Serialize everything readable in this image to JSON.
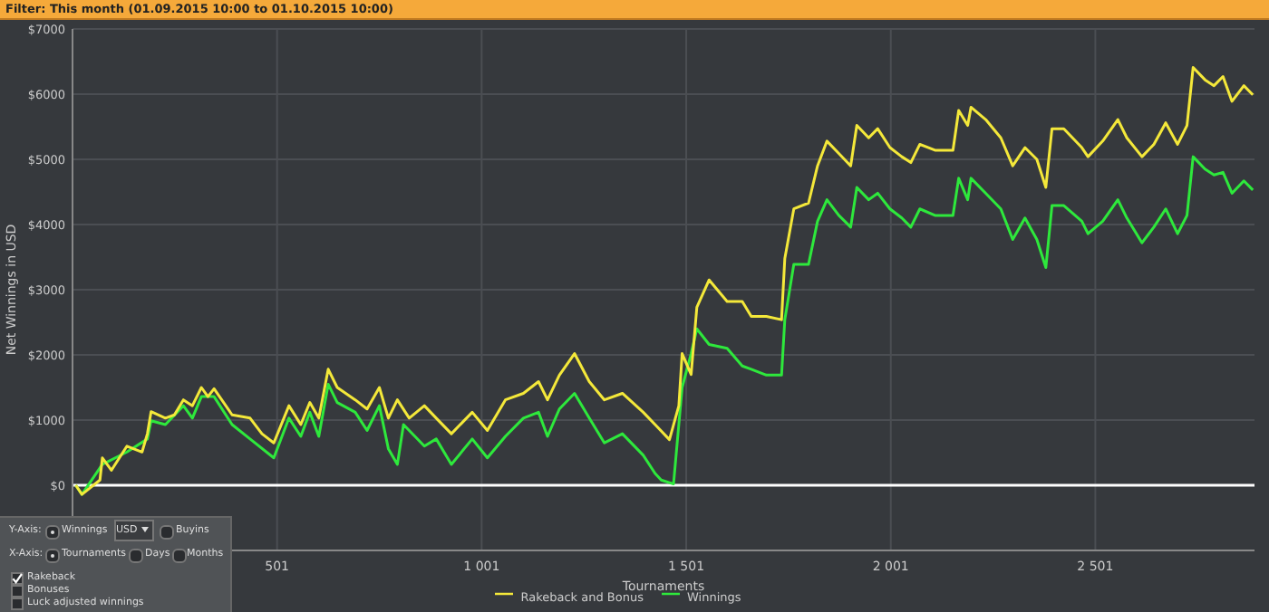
{
  "chart_data": {
    "type": "line",
    "title": "Filter: This month (01.09.2015 10:00 to 01.10.2015 10:00)",
    "xlabel": "Tournaments",
    "ylabel": "Net Winnings in USD",
    "xlim": [
      1,
      2890
    ],
    "xticks": [
      {
        "value": 501,
        "label": "501"
      },
      {
        "value": 1001,
        "label": "1 001"
      },
      {
        "value": 1501,
        "label": "1 501"
      },
      {
        "value": 2001,
        "label": "2 001"
      },
      {
        "value": 2501,
        "label": "2 501"
      }
    ],
    "ylim": [
      -1000,
      7000
    ],
    "yticks": [
      {
        "value": 0,
        "label": "$0"
      },
      {
        "value": 1000,
        "label": "$1000"
      },
      {
        "value": 2000,
        "label": "$2000"
      },
      {
        "value": 3000,
        "label": "$3000"
      },
      {
        "value": 4000,
        "label": "$4000"
      },
      {
        "value": 5000,
        "label": "$5000"
      },
      {
        "value": 6000,
        "label": "$6000"
      },
      {
        "value": 7000,
        "label": "$7000"
      }
    ],
    "grid": true,
    "legend": "bottom",
    "marker": "none",
    "line_style": "solid",
    "ref_lines": [
      {
        "axis": "y",
        "value": 0,
        "color": "#ffffff"
      }
    ],
    "series": [
      {
        "name": "Winnings",
        "color": "#2ee83c",
        "x": [
          9,
          24,
          74,
          134,
          184,
          193,
          228,
          272,
          294,
          316,
          347,
          391,
          435,
          493,
          530,
          559,
          581,
          603,
          626,
          648,
          692,
          721,
          751,
          773,
          795,
          810,
          861,
          890,
          927,
          978,
          1015,
          1059,
          1103,
          1140,
          1162,
          1191,
          1228,
          1264,
          1301,
          1345,
          1396,
          1425,
          1440,
          1470,
          1491,
          1513,
          1527,
          1557,
          1601,
          1638,
          1660,
          1697,
          1734,
          1742,
          1764,
          1800,
          1822,
          1845,
          1874,
          1903,
          1918,
          1947,
          1969,
          1999,
          2028,
          2050,
          2072,
          2109,
          2153,
          2167,
          2189,
          2197,
          2233,
          2270,
          2299,
          2329,
          2358,
          2380,
          2395,
          2424,
          2468,
          2483,
          2519,
          2556,
          2578,
          2615,
          2644,
          2673,
          2702,
          2725,
          2740,
          2769,
          2791,
          2813,
          2835,
          2864,
          2886
        ],
        "values": [
          0,
          -140,
          320,
          510,
          710,
          990,
          930,
          1220,
          1030,
          1360,
          1360,
          930,
          710,
          420,
          1030,
          750,
          1120,
          750,
          1550,
          1270,
          1120,
          840,
          1220,
          560,
          320,
          930,
          600,
          710,
          320,
          710,
          420,
          750,
          1030,
          1120,
          750,
          1170,
          1410,
          1030,
          650,
          790,
          460,
          180,
          80,
          20,
          1500,
          2020,
          2400,
          2160,
          2100,
          1830,
          1780,
          1690,
          1690,
          2540,
          3390,
          3390,
          4050,
          4380,
          4140,
          3960,
          4570,
          4380,
          4480,
          4240,
          4100,
          3960,
          4240,
          4140,
          4140,
          4710,
          4380,
          4710,
          4480,
          4240,
          3770,
          4100,
          3770,
          3340,
          4290,
          4290,
          4050,
          3860,
          4050,
          4380,
          4100,
          3720,
          3960,
          4240,
          3860,
          4140,
          5040,
          4850,
          4760,
          4800,
          4480,
          4670,
          4530
        ]
      },
      {
        "name": "Rakeback and Bonus",
        "color": "#f4e83a",
        "x": [
          9,
          24,
          68,
          74,
          96,
          134,
          171,
          184,
          193,
          228,
          250,
          272,
          294,
          316,
          332,
          347,
          391,
          435,
          464,
          493,
          530,
          559,
          581,
          603,
          626,
          648,
          692,
          721,
          751,
          773,
          795,
          824,
          861,
          890,
          927,
          978,
          1015,
          1059,
          1103,
          1140,
          1162,
          1191,
          1228,
          1264,
          1301,
          1345,
          1396,
          1425,
          1460,
          1483,
          1491,
          1513,
          1527,
          1557,
          1601,
          1638,
          1660,
          1697,
          1734,
          1742,
          1764,
          1800,
          1822,
          1845,
          1874,
          1903,
          1918,
          1947,
          1969,
          1999,
          2028,
          2050,
          2072,
          2109,
          2153,
          2167,
          2189,
          2197,
          2233,
          2270,
          2299,
          2329,
          2358,
          2380,
          2395,
          2424,
          2468,
          2483,
          2519,
          2556,
          2578,
          2615,
          2644,
          2673,
          2702,
          2725,
          2740,
          2769,
          2791,
          2813,
          2835,
          2864,
          2886
        ],
        "values": [
          0,
          -140,
          80,
          420,
          230,
          600,
          510,
          790,
          1130,
          1030,
          1080,
          1310,
          1220,
          1500,
          1360,
          1480,
          1080,
          1030,
          790,
          650,
          1220,
          930,
          1270,
          1030,
          1780,
          1500,
          1310,
          1170,
          1500,
          1030,
          1310,
          1030,
          1220,
          1030,
          790,
          1120,
          840,
          1310,
          1410,
          1590,
          1310,
          1690,
          2020,
          1590,
          1310,
          1410,
          1120,
          930,
          700,
          1220,
          2020,
          1700,
          2730,
          3150,
          2820,
          2820,
          2590,
          2590,
          2540,
          3480,
          4240,
          4330,
          4900,
          5280,
          5090,
          4900,
          5520,
          5330,
          5470,
          5180,
          5040,
          4950,
          5230,
          5140,
          5140,
          5750,
          5520,
          5800,
          5610,
          5330,
          4900,
          5180,
          5000,
          4570,
          5470,
          5470,
          5180,
          5040,
          5280,
          5610,
          5330,
          5040,
          5230,
          5560,
          5230,
          5520,
          6410,
          6220,
          6130,
          6270,
          5890,
          6130,
          5990
        ]
      }
    ],
    "annotations": [
      "Y-Axis:",
      "Winnings",
      "USD",
      "Buyins",
      "X-Axis:",
      "Tournaments",
      "Days",
      "Months",
      "Rakeback",
      "Bonuses",
      "Luck adjusted winnings"
    ]
  }
}
